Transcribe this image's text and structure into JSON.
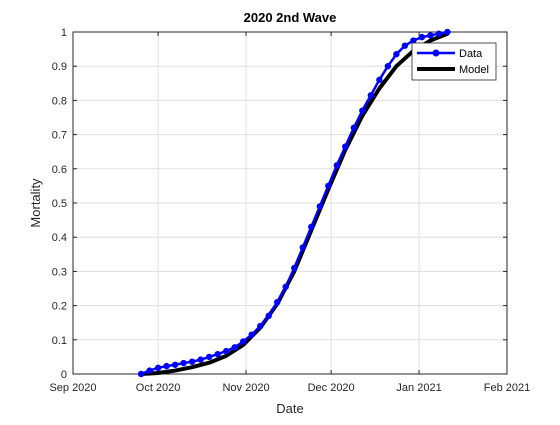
{
  "chart_data": {
    "type": "line",
    "title": "2020 2nd Wave",
    "xlabel": "Date",
    "ylabel": "Mortality",
    "x_axis": {
      "scale": "date",
      "range": [
        "2020-09-01",
        "2021-02-01"
      ],
      "ticks": [
        {
          "date": "2020-09-01",
          "label": "Sep 2020"
        },
        {
          "date": "2020-10-01",
          "label": "Oct 2020"
        },
        {
          "date": "2020-11-01",
          "label": "Nov 2020"
        },
        {
          "date": "2020-12-01",
          "label": "Dec 2020"
        },
        {
          "date": "2021-01-01",
          "label": "Jan 2021"
        },
        {
          "date": "2021-02-01",
          "label": "Feb 2021"
        }
      ]
    },
    "y_axis": {
      "range": [
        0,
        1
      ],
      "ticks": [
        "0",
        "0.1",
        "0.2",
        "0.3",
        "0.4",
        "0.5",
        "0.6",
        "0.7",
        "0.8",
        "0.9",
        "1"
      ]
    },
    "grid": true,
    "legend_position": "top-right",
    "series": [
      {
        "name": "Data",
        "color": "#0000ff",
        "marker": "dot",
        "points": [
          {
            "x": "2020-09-25",
            "y": 0.0
          },
          {
            "x": "2020-09-28",
            "y": 0.01
          },
          {
            "x": "2020-10-01",
            "y": 0.018
          },
          {
            "x": "2020-10-04",
            "y": 0.023
          },
          {
            "x": "2020-10-07",
            "y": 0.027
          },
          {
            "x": "2020-10-10",
            "y": 0.032
          },
          {
            "x": "2020-10-13",
            "y": 0.036
          },
          {
            "x": "2020-10-16",
            "y": 0.042
          },
          {
            "x": "2020-10-19",
            "y": 0.05
          },
          {
            "x": "2020-10-22",
            "y": 0.058
          },
          {
            "x": "2020-10-25",
            "y": 0.067
          },
          {
            "x": "2020-10-28",
            "y": 0.078
          },
          {
            "x": "2020-10-31",
            "y": 0.095
          },
          {
            "x": "2020-11-03",
            "y": 0.115
          },
          {
            "x": "2020-11-06",
            "y": 0.14
          },
          {
            "x": "2020-11-09",
            "y": 0.17
          },
          {
            "x": "2020-11-12",
            "y": 0.21
          },
          {
            "x": "2020-11-15",
            "y": 0.255
          },
          {
            "x": "2020-11-18",
            "y": 0.31
          },
          {
            "x": "2020-11-21",
            "y": 0.37
          },
          {
            "x": "2020-11-24",
            "y": 0.43
          },
          {
            "x": "2020-11-27",
            "y": 0.49
          },
          {
            "x": "2020-11-30",
            "y": 0.55
          },
          {
            "x": "2020-12-03",
            "y": 0.61
          },
          {
            "x": "2020-12-06",
            "y": 0.665
          },
          {
            "x": "2020-12-09",
            "y": 0.72
          },
          {
            "x": "2020-12-12",
            "y": 0.77
          },
          {
            "x": "2020-12-15",
            "y": 0.815
          },
          {
            "x": "2020-12-18",
            "y": 0.86
          },
          {
            "x": "2020-12-21",
            "y": 0.9
          },
          {
            "x": "2020-12-24",
            "y": 0.935
          },
          {
            "x": "2020-12-27",
            "y": 0.96
          },
          {
            "x": "2020-12-30",
            "y": 0.975
          },
          {
            "x": "2021-01-02",
            "y": 0.985
          },
          {
            "x": "2021-01-05",
            "y": 0.99
          },
          {
            "x": "2021-01-08",
            "y": 0.995
          },
          {
            "x": "2021-01-11",
            "y": 1.0
          }
        ]
      },
      {
        "name": "Model",
        "color": "#000000",
        "marker": "none",
        "points": [
          {
            "x": "2020-09-25",
            "y": 0.0
          },
          {
            "x": "2020-10-01",
            "y": 0.003
          },
          {
            "x": "2020-10-07",
            "y": 0.01
          },
          {
            "x": "2020-10-13",
            "y": 0.02
          },
          {
            "x": "2020-10-19",
            "y": 0.033
          },
          {
            "x": "2020-10-25",
            "y": 0.053
          },
          {
            "x": "2020-10-31",
            "y": 0.085
          },
          {
            "x": "2020-11-06",
            "y": 0.135
          },
          {
            "x": "2020-11-12",
            "y": 0.205
          },
          {
            "x": "2020-11-18",
            "y": 0.3
          },
          {
            "x": "2020-11-24",
            "y": 0.42
          },
          {
            "x": "2020-11-30",
            "y": 0.54
          },
          {
            "x": "2020-12-06",
            "y": 0.655
          },
          {
            "x": "2020-12-12",
            "y": 0.755
          },
          {
            "x": "2020-12-18",
            "y": 0.835
          },
          {
            "x": "2020-12-24",
            "y": 0.9
          },
          {
            "x": "2020-12-30",
            "y": 0.945
          },
          {
            "x": "2021-01-05",
            "y": 0.975
          },
          {
            "x": "2021-01-11",
            "y": 0.995
          }
        ]
      }
    ]
  }
}
